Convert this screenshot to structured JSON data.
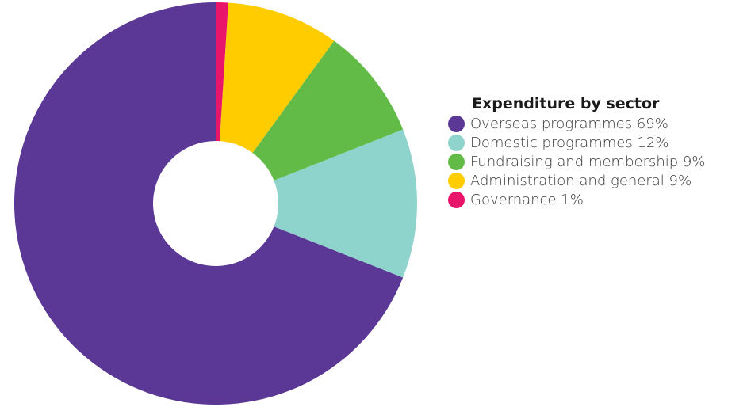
{
  "chart_data": {
    "type": "pie",
    "variant": "donut",
    "title": "Expenditure by sector",
    "categories": [
      "Overseas programmes",
      "Domestic programmes",
      "Fundraising and membership",
      "Administration and general",
      "Governance"
    ],
    "values": [
      69,
      12,
      9,
      9,
      1
    ],
    "unit": "%",
    "colors": [
      "#5b3895",
      "#8ed3cc",
      "#63bb47",
      "#ffcc00",
      "#e8156b"
    ],
    "legend_labels": [
      "Overseas programmes 69%",
      "Domestic programmes 12%",
      "Fundraising and membership 9%",
      "Administration and general 9%",
      "Governance 1%"
    ],
    "legend_position": "right"
  }
}
